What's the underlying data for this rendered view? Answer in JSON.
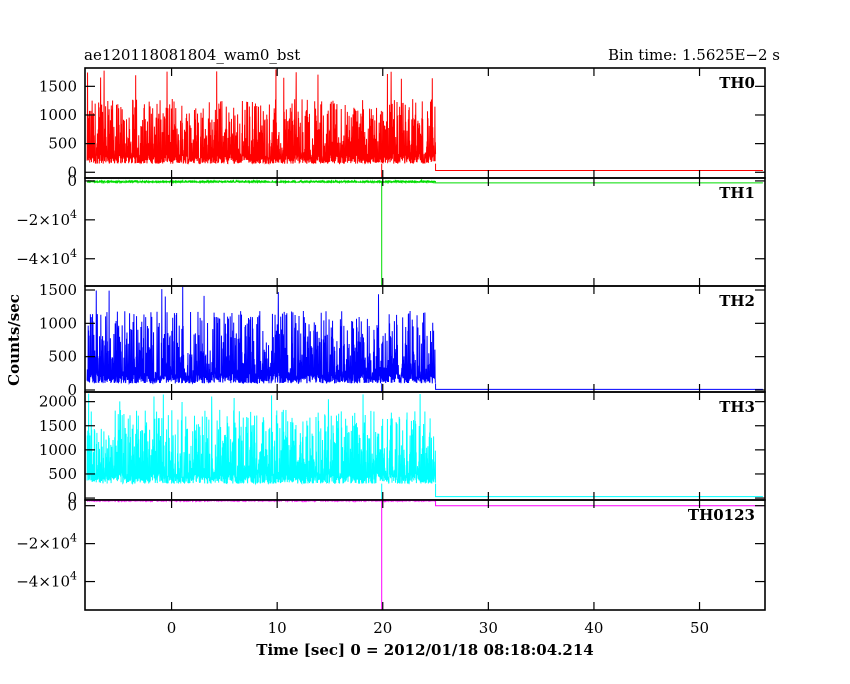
{
  "header": {
    "title": "ae120118081804_wam0_bst",
    "bin_time": "Bin time: 1.5625E−2 s"
  },
  "chart_data": {
    "type": "line",
    "xlabel": "Time [sec] 0 = 2012/01/18 08:18:04.214",
    "ylabel": "Counts/sec",
    "xlim": [
      -8.2,
      56.2
    ],
    "x_ticks": [
      {
        "value": 0,
        "label": "0"
      },
      {
        "value": 10,
        "label": "10"
      },
      {
        "value": 20,
        "label": "20"
      },
      {
        "value": 30,
        "label": "30"
      },
      {
        "value": 40,
        "label": "40"
      },
      {
        "value": 50,
        "label": "50"
      }
    ],
    "grid": false,
    "panels": [
      {
        "name": "TH0",
        "color": "#ff0000",
        "ylim": [
          -100,
          1820
        ],
        "y_ticks": [
          {
            "value": 0,
            "label": "0"
          },
          {
            "value": 500,
            "label": "500"
          },
          {
            "value": 1000,
            "label": "1000"
          },
          {
            "value": 1500,
            "label": "1500"
          }
        ],
        "signal": {
          "t_start": -8.0,
          "t_end": 25.0,
          "base": 150,
          "typical_max": 1300,
          "peak": 1800,
          "dip_time": 19.9,
          "dip_value": -100,
          "after": 30,
          "end": 56.0
        }
      },
      {
        "name": "TH1",
        "color": "#00dd00",
        "ylim": [
          -54000,
          1500
        ],
        "y_ticks": [
          {
            "value": 0,
            "label": "0"
          },
          {
            "value": -20000,
            "label": "−2×10",
            "exp": "4"
          },
          {
            "value": -40000,
            "label": "−4×10",
            "exp": "4"
          }
        ],
        "signal": {
          "t_start": -8.0,
          "t_end": 25.0,
          "base": -700,
          "typical_max": 400,
          "peak": 600,
          "dip_time": 19.9,
          "dip_value": -54000,
          "after": -1000,
          "end": 56.0
        }
      },
      {
        "name": "TH2",
        "color": "#0000ff",
        "ylim": [
          -30,
          1560
        ],
        "y_ticks": [
          {
            "value": 0,
            "label": "0"
          },
          {
            "value": 500,
            "label": "500"
          },
          {
            "value": 1000,
            "label": "1000"
          },
          {
            "value": 1500,
            "label": "1500"
          }
        ],
        "signal": {
          "t_start": -8.0,
          "t_end": 25.0,
          "base": 100,
          "typical_max": 1200,
          "peak": 1550,
          "dip_time": 19.9,
          "dip_value": -30,
          "after": 10,
          "end": 56.0
        }
      },
      {
        "name": "TH3",
        "color": "#00ffff",
        "ylim": [
          -40,
          2200
        ],
        "y_ticks": [
          {
            "value": 0,
            "label": "0"
          },
          {
            "value": 500,
            "label": "500"
          },
          {
            "value": 1000,
            "label": "1000"
          },
          {
            "value": 1500,
            "label": "1500"
          },
          {
            "value": 2000,
            "label": "2000"
          }
        ],
        "signal": {
          "t_start": -8.0,
          "t_end": 25.0,
          "base": 300,
          "typical_max": 1850,
          "peak": 2190,
          "dip_time": 19.9,
          "dip_value": -40,
          "after": 30,
          "end": 56.0
        }
      },
      {
        "name": "TH0123",
        "color": "#ff00ff",
        "ylim": [
          -55000,
          3000
        ],
        "y_ticks": [
          {
            "value": 0,
            "label": "0"
          },
          {
            "value": -20000,
            "label": "−2×10",
            "exp": "4"
          },
          {
            "value": -40000,
            "label": "−4×10",
            "exp": "4"
          }
        ],
        "signal": {
          "t_start": -8.0,
          "t_end": 25.0,
          "base": 2500,
          "typical_max": 3800,
          "peak": 4000,
          "dip_time": 19.9,
          "dip_value": -55000,
          "after": 0,
          "end": 56.0
        }
      }
    ]
  }
}
